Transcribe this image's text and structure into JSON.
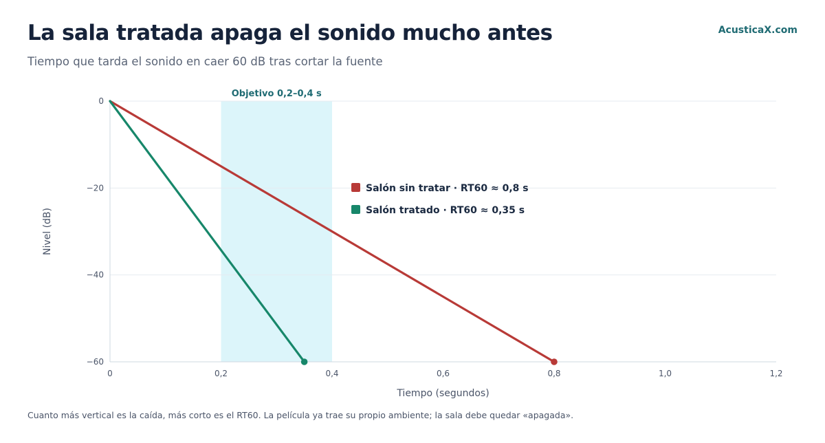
{
  "header": {
    "title": "La sala tratada apaga el sonido mucho antes",
    "subtitle": "Tiempo que tarda el sonido en caer 60 dB tras cortar la fuente",
    "brand": "AcusticaX.com"
  },
  "footer": {
    "note": "Cuanto más vertical es la caída, más corto es el RT60. La película ya trae su propio ambiente; la sala debe quedar «apagada»."
  },
  "chart_data": {
    "type": "line",
    "xlabel": "Tiempo (segundos)",
    "ylabel": "Nivel (dB)",
    "xlim": [
      0,
      1.2
    ],
    "ylim": [
      -60,
      0
    ],
    "x_ticks": [
      0,
      0.2,
      0.4,
      0.6,
      0.8,
      1.0,
      1.2
    ],
    "x_tick_labels": [
      "0",
      "0,2",
      "0,4",
      "0,6",
      "0,8",
      "1,0",
      "1,2"
    ],
    "y_ticks": [
      0,
      -20,
      -40,
      -60
    ],
    "y_tick_labels": [
      "0",
      "−20",
      "−40",
      "−60"
    ],
    "grid": "horizontal",
    "highlight_band": {
      "x_start": 0.2,
      "x_end": 0.4,
      "label": "Objetivo 0,2–0,4 s",
      "color": "#dcf5fa"
    },
    "legend_position": "center",
    "series": [
      {
        "name": "Salón sin tratar · RT60 ≈ 0,8 s",
        "color": "#b83a37",
        "x": [
          0,
          0.8
        ],
        "y": [
          0,
          -60
        ]
      },
      {
        "name": "Salón tratado · RT60 ≈ 0,35 s",
        "color": "#17876a",
        "x": [
          0,
          0.35
        ],
        "y": [
          0,
          -60
        ]
      }
    ]
  }
}
